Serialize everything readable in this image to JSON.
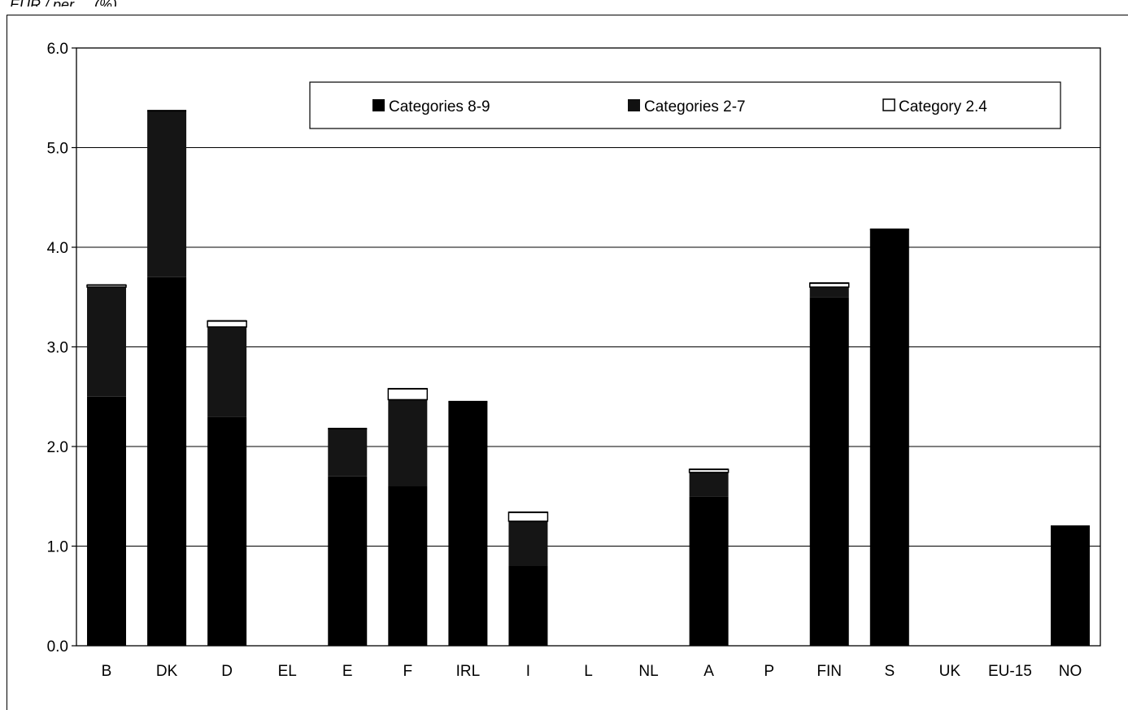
{
  "header_fragment": "EUR / per ... (%)",
  "chart_data": {
    "type": "bar",
    "stacked": true,
    "title": "",
    "xlabel": "",
    "ylabel": "",
    "ylim": [
      0,
      6
    ],
    "yticks": [
      "0.0",
      "1.0",
      "2.0",
      "3.0",
      "4.0",
      "5.0",
      "6.0"
    ],
    "grid": true,
    "legend_position": "top",
    "categories": [
      "B",
      "DK",
      "D",
      "EL",
      "E",
      "F",
      "IRL",
      "I",
      "L",
      "NL",
      "A",
      "P",
      "FIN",
      "S",
      "UK",
      "EU-15",
      "NO"
    ],
    "series": [
      {
        "name": "Categories 8-9",
        "color": "#000000",
        "values": [
          2.5,
          3.7,
          2.3,
          0,
          1.7,
          1.6,
          2.45,
          0.8,
          0,
          0,
          1.5,
          0,
          3.5,
          4.18,
          0,
          0,
          1.2
        ]
      },
      {
        "name": "Categories 2-7",
        "color": "#2a2a2a",
        "values": [
          1.1,
          1.67,
          0.9,
          0,
          0.48,
          0.87,
          0,
          0.45,
          0,
          0,
          0.24,
          0,
          0.1,
          0,
          0,
          0,
          0
        ]
      },
      {
        "name": "Category 2.4",
        "color": "#ffffff",
        "values": [
          0.02,
          0,
          0.06,
          0,
          0,
          0.11,
          0,
          0.09,
          0,
          0,
          0.03,
          0,
          0.04,
          0,
          0,
          0,
          0
        ]
      }
    ]
  }
}
